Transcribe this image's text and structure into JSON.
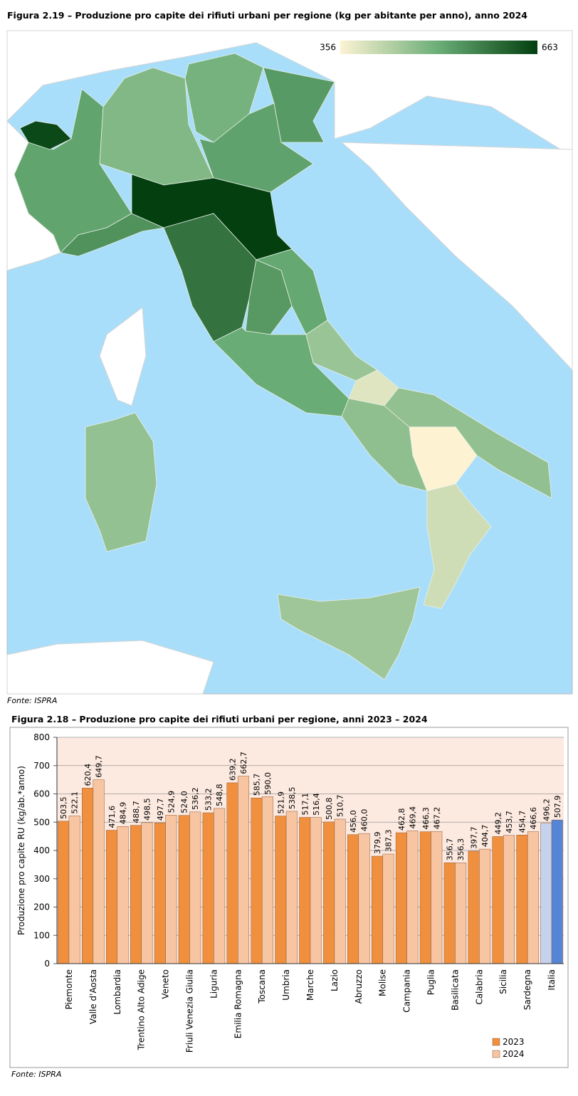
{
  "chart_data": [
    {
      "type": "choropleth",
      "title": "Figura 2.19 – Produzione pro capite dei rifiuti urbani per regione (kg per abitante per anno), anno 2024",
      "source": "Fonte: ISPRA",
      "clim": [
        356,
        663
      ],
      "cticks": [
        356,
        663
      ],
      "colorscale": [
        "#fdf3d3",
        "#6aad77",
        "#033f0f"
      ]
    },
    {
      "type": "bar",
      "title": "Figura 2.18 – Produzione pro capite dei rifiuti urbani per regione, anni 2023 – 2024",
      "ylabel": "Produzione pro capite RU (kg/ab.*anno)",
      "source": "Fonte: ISPRA",
      "categories": [
        "Piemonte",
        "Valle d'Aosta",
        "Lombardia",
        "Trentino Alto Adige",
        "Veneto",
        "Friuli Venezia Giulia",
        "Liguria",
        "Emilia Romagna",
        "Toscana",
        "Umbria",
        "Marche",
        "Lazio",
        "Abruzzo",
        "Molise",
        "Campania",
        "Puglia",
        "Basilicata",
        "Calabria",
        "Sicilia",
        "Sardegna",
        "Italia"
      ],
      "series": [
        {
          "name": "2023",
          "color": "#f0903e",
          "last_color": "#c4d2ee",
          "values": [
            503.5,
            620.4,
            471.6,
            488.7,
            497.7,
            524.0,
            533.2,
            639.2,
            585.7,
            521.9,
            517.1,
            500.8,
            456.0,
            379.9,
            462.8,
            466.3,
            356.7,
            397.7,
            449.2,
            454.7,
            496.2
          ],
          "value_labels": [
            "503,5",
            "620,4",
            "471,6",
            "488,7",
            "497,7",
            "524,0",
            "533,2",
            "639,2",
            "585,7",
            "521,9",
            "517,1",
            "500,8",
            "456,0",
            "379,9",
            "462,8",
            "466,3",
            "356,7",
            "397,7",
            "449,2",
            "454,7",
            "496,2"
          ]
        },
        {
          "name": "2024",
          "color": "#f8c5a3",
          "last_color": "#5585d6",
          "values": [
            522.1,
            649.7,
            484.9,
            498.5,
            524.9,
            536.2,
            548.8,
            662.7,
            590.0,
            538.5,
            516.4,
            510.7,
            460.0,
            387.3,
            469.4,
            467.2,
            356.3,
            404.7,
            453.7,
            466.6,
            507.9
          ],
          "value_labels": [
            "522,1",
            "649,7",
            "484,9",
            "498,5",
            "524,9",
            "536,2",
            "548,8",
            "662,7",
            "590,0",
            "538,5",
            "516,4",
            "510,7",
            "460,0",
            "387,3",
            "469,4",
            "467,2",
            "356,3",
            "404,7",
            "453,7",
            "466,6",
            "507,9"
          ]
        }
      ],
      "ylim": [
        0,
        800
      ],
      "yticks": [
        0,
        100,
        200,
        300,
        400,
        500,
        600,
        700,
        800
      ],
      "grid": true
    }
  ]
}
